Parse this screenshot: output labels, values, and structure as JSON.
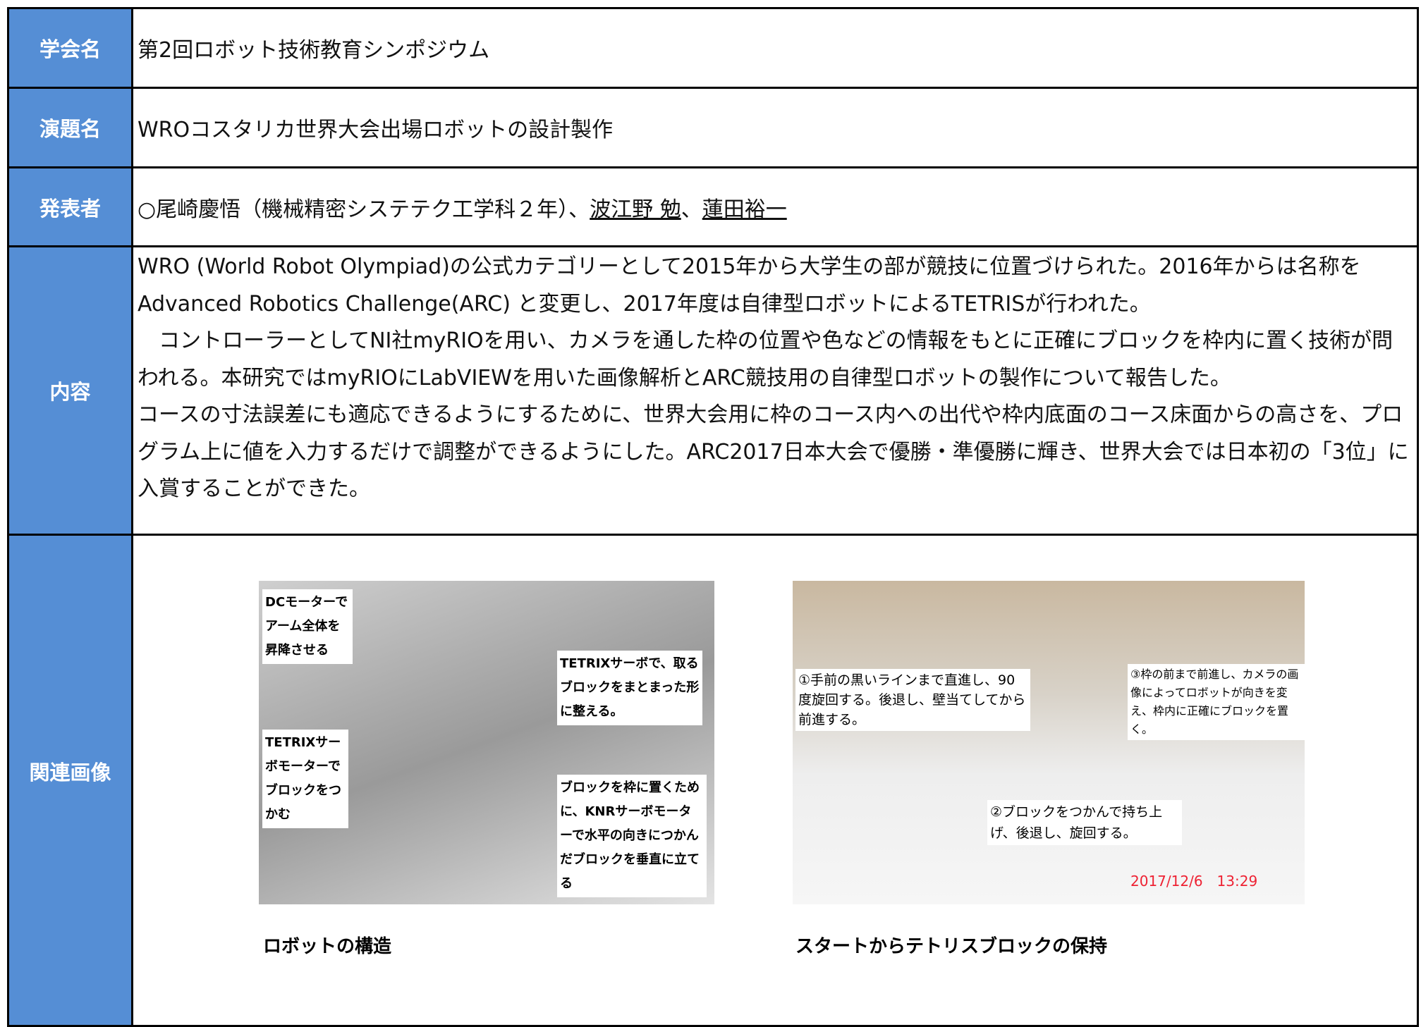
{
  "rows": [
    {
      "label": "学会名",
      "value": "第2回ロボット技術教育シンポジウム"
    },
    {
      "label": "演題名",
      "value": "WROコスタリカ世界大会出場ロボットの設計製作"
    },
    {
      "label": "発表者",
      "parts": [
        {
          "text": "○尾崎慶悟（機械精密システテク工学科２年）、",
          "underline": false
        },
        {
          "text": "波江野 勉",
          "underline": true
        },
        {
          "text": "、",
          "underline": false
        },
        {
          "text": "蓮田裕一",
          "underline": true
        }
      ]
    },
    {
      "label": "内容",
      "paragraphs": [
        "WRO (World Robot Olympiad)の公式カテゴリーとして2015年から大学生の部が競技に位置づけられた。2016年からは名称をAdvanced Robotics Challenge(ARC) と変更し、2017年度は自律型ロボットによるTETRISが行われた。",
        "　コントローラーとしてNI社myRIOを用い、カメラを通した枠の位置や色などの情報をもとに正確にブロックを枠内に置く技術が問われる。本研究ではmyRIOにLabVIEWを用いた画像解析とARC競技用の自律型ロボットの製作について報告した。",
        "コースの寸法誤差にも適応できるようにするために、世界大会用に枠のコース内への出代や枠内底面のコース床面からの高さを、プログラム上に値を入力するだけで調整ができるようにした。ARC2017日本大会で優勝・準優勝に輝き、世界大会では日本初の「3位」に入賞することができた。"
      ]
    },
    {
      "label": "関連画像",
      "images": [
        {
          "caption": "ロボットの構造",
          "callouts": [
            "DCモーターでアーム全体を昇降させる",
            "TETRIXサーボで、取るブロックをまとまった形に整える。",
            "TETRIXサーボモーターでブロックをつかむ",
            "ブロックを枠に置くために、KNRサーボモーターで水平の向きにつかんだブロックを垂直に立てる"
          ]
        },
        {
          "caption": "スタートからテトリスブロックの保持",
          "callouts": [
            "①手前の黒いラインまで直進し、90度旋回する。後退し、壁当てしてから前進する。",
            "③枠の前まで前進し、カメラの画像によってロボットが向きを変え、枠内に正確にブロックを置く。",
            "②ブロックをつかんで持ち上げ、後退し、旋回する。",
            "2017/12/6　13:29"
          ]
        }
      ]
    }
  ]
}
